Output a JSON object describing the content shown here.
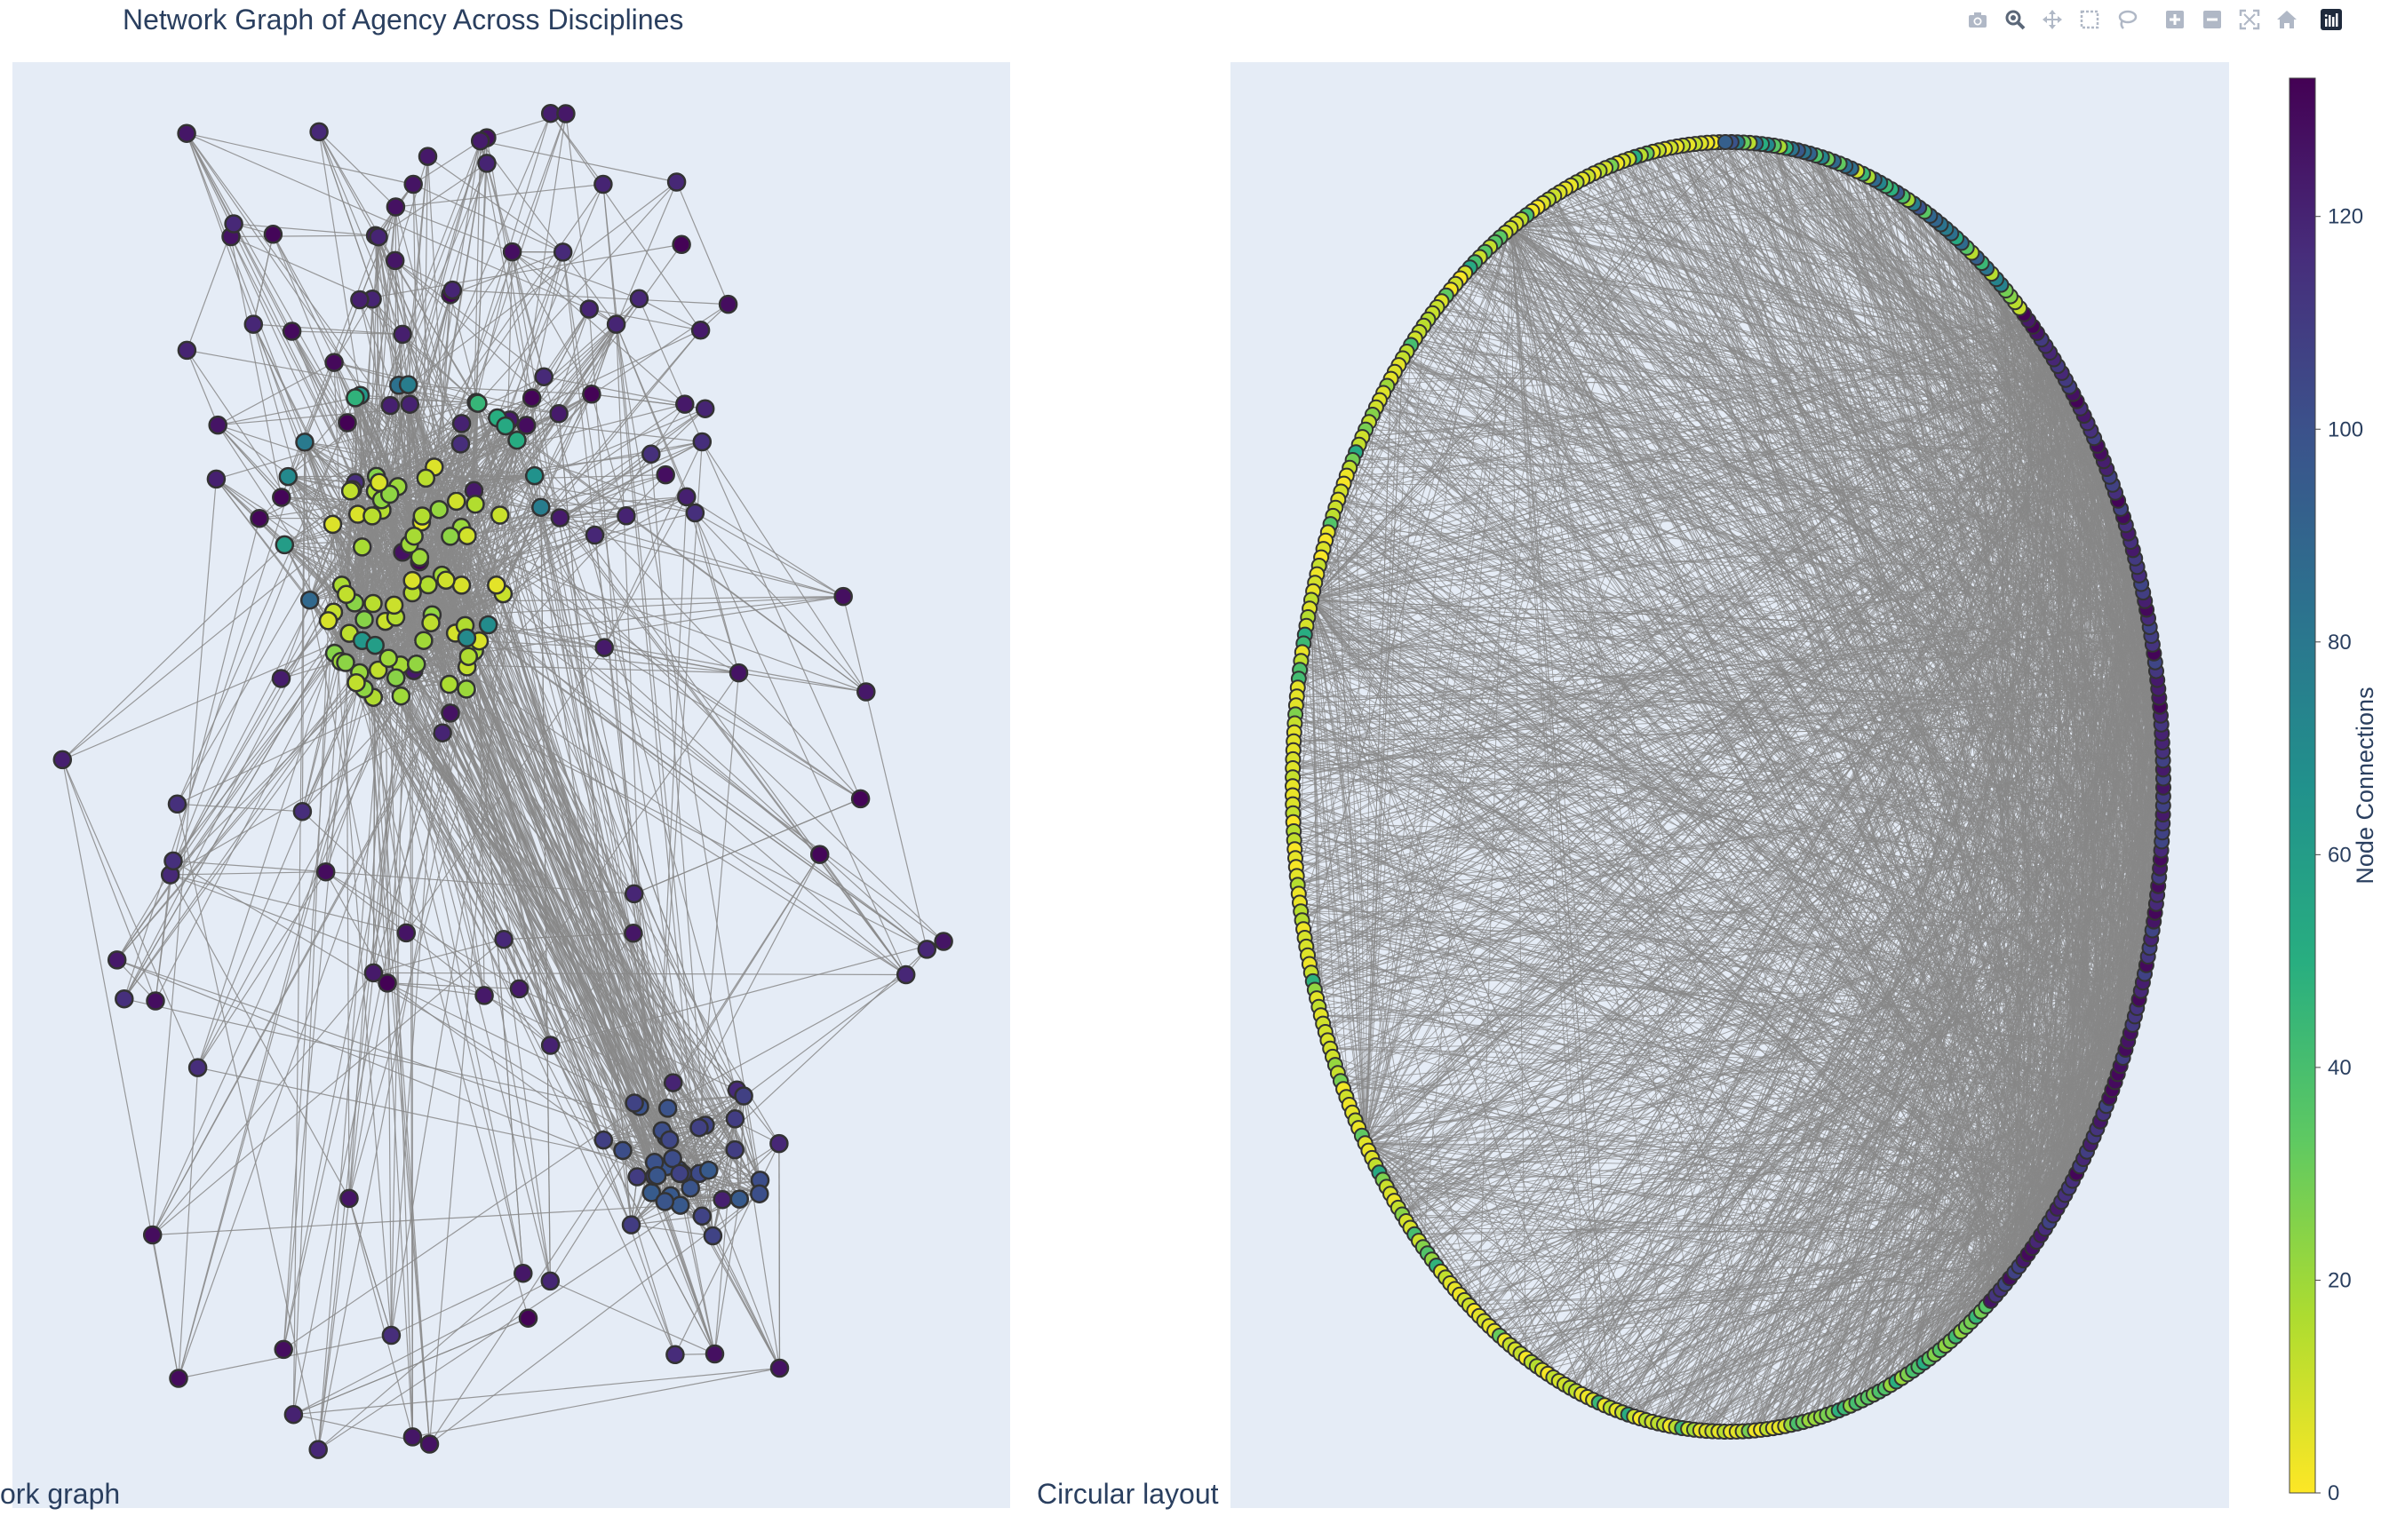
{
  "figure": {
    "title": "Network Graph of Agency Across Disciplines",
    "left_subplot_label": "ork graph",
    "right_subplot_label": "Circular layout",
    "background_color": "#e5ecf6",
    "edge_color": "#888888",
    "node_outline_color": "#333333"
  },
  "modebar": {
    "buttons": [
      {
        "name": "camera-icon",
        "label": "Download plot as a png"
      },
      {
        "name": "zoom-icon",
        "label": "Zoom"
      },
      {
        "name": "pan-icon",
        "label": "Pan"
      },
      {
        "name": "box-select-icon",
        "label": "Box Select"
      },
      {
        "name": "lasso-select-icon",
        "label": "Lasso Select"
      },
      {
        "name": "zoom-in-icon",
        "label": "Zoom in"
      },
      {
        "name": "zoom-out-icon",
        "label": "Zoom out"
      },
      {
        "name": "autoscale-icon",
        "label": "Autoscale"
      },
      {
        "name": "reset-axes-icon",
        "label": "Reset axes"
      },
      {
        "name": "plotly-logo-icon",
        "label": "Produced with Plotly"
      }
    ]
  },
  "chart_data": {
    "type": "scatter",
    "colorscale": "Viridis_r",
    "colorscale_stops": [
      "#fde725",
      "#addc30",
      "#5ec962",
      "#28ae80",
      "#21918c",
      "#2c728e",
      "#3b528b",
      "#472d7b",
      "#440154"
    ],
    "colorbar": {
      "title": "Node Connections",
      "range": [
        0,
        133
      ],
      "ticks": [
        0,
        20,
        40,
        60,
        80,
        100,
        120
      ],
      "tick_labels": [
        "0",
        "20",
        "40",
        "60",
        "80",
        "100",
        "120"
      ]
    },
    "left_network": {
      "layout": "force-directed",
      "node_count": 240,
      "hub_cluster": {
        "nodes": 70,
        "connections": [
          5,
          25
        ]
      },
      "secondary_cluster": {
        "nodes": 35,
        "connections": [
          95,
          110
        ]
      },
      "periphery": {
        "connections": [
          115,
          133
        ]
      }
    },
    "circular_network": {
      "layout": "circular",
      "node_count": 450,
      "node_order_by_connections": [
        "low (0-20)",
        "mid (20-60)",
        "high (100-133)"
      ]
    }
  }
}
